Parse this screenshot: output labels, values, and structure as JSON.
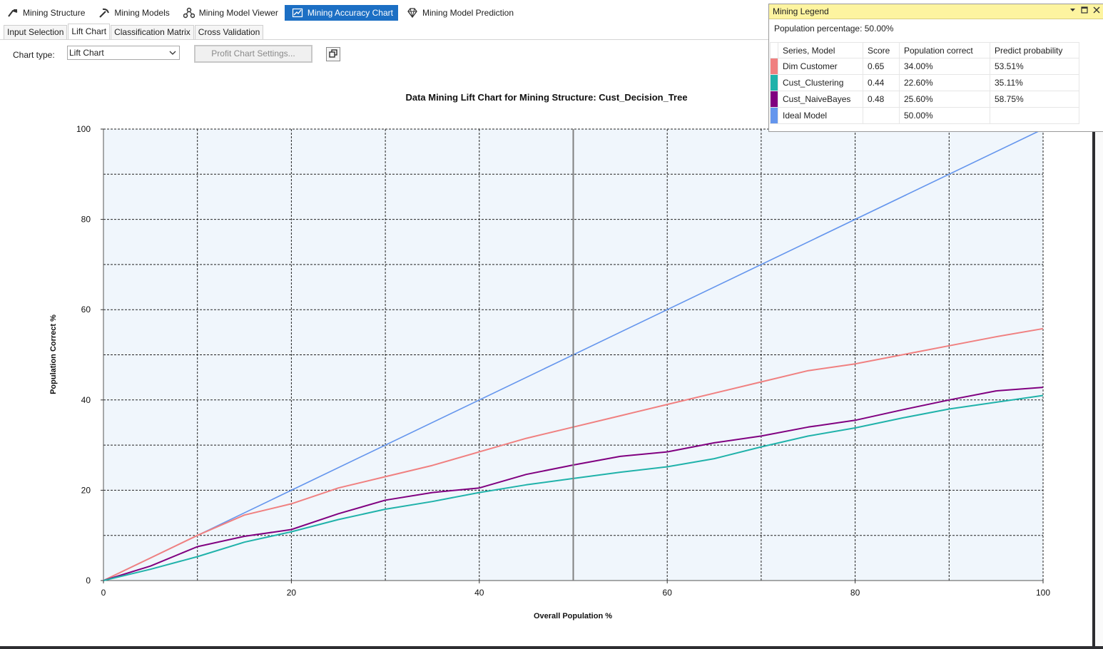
{
  "toolbar": {
    "tabs": [
      {
        "label": "Mining Structure",
        "icon": "mining-structure-icon"
      },
      {
        "label": "Mining Models",
        "icon": "mining-models-icon"
      },
      {
        "label": "Mining Model Viewer",
        "icon": "model-viewer-icon"
      },
      {
        "label": "Mining Accuracy Chart",
        "icon": "accuracy-chart-icon",
        "active": true
      },
      {
        "label": "Mining Model Prediction",
        "icon": "prediction-icon"
      }
    ]
  },
  "subtabs": [
    {
      "label": "Input Selection"
    },
    {
      "label": "Lift Chart",
      "active": true
    },
    {
      "label": "Classification Matrix"
    },
    {
      "label": "Cross Validation"
    }
  ],
  "controls": {
    "chart_type_label": "Chart type:",
    "chart_type_value": "Lift Chart",
    "profit_settings_label": "Profit Chart Settings..."
  },
  "legend": {
    "title": "Mining Legend",
    "population_percentage": "Population percentage: 50.00%",
    "headers": [
      "Series, Model",
      "Score",
      "Population correct",
      "Predict probability"
    ],
    "rows": [
      {
        "model": "Dim Customer",
        "score": "0.65",
        "population_correct": "34.00%",
        "predict_probability": "53.51%",
        "color": "#f08080"
      },
      {
        "model": "Cust_Clustering",
        "score": "0.44",
        "population_correct": "22.60%",
        "predict_probability": "35.11%",
        "color": "#20b2aa"
      },
      {
        "model": "Cust_NaiveBayes",
        "score": "0.48",
        "population_correct": "25.60%",
        "predict_probability": "58.75%",
        "color": "#800080"
      },
      {
        "model": "Ideal Model",
        "score": "",
        "population_correct": "50.00%",
        "predict_probability": "",
        "color": "#6495ed"
      }
    ]
  },
  "chart_data": {
    "type": "line",
    "title": "Data Mining Lift Chart for Mining Structure: Cust_Decision_Tree",
    "xlabel": "Overall Population %",
    "ylabel": "Population Correct %",
    "xlim": [
      0,
      100
    ],
    "ylim": [
      0,
      100
    ],
    "x_ticks": [
      0,
      20,
      40,
      60,
      80,
      100
    ],
    "y_ticks": [
      0,
      20,
      40,
      60,
      80,
      100
    ],
    "grid": true,
    "marker_x": 50,
    "series": [
      {
        "name": "Dim Customer",
        "color": "#f08080",
        "x": [
          0,
          5,
          10,
          15,
          20,
          25,
          30,
          35,
          40,
          45,
          50,
          55,
          60,
          65,
          70,
          75,
          80,
          85,
          90,
          95,
          100
        ],
        "y": [
          0,
          5,
          10,
          14.5,
          17,
          20.5,
          23,
          25.5,
          28.5,
          31.5,
          34,
          36.5,
          39,
          41.5,
          44,
          46.5,
          48,
          50,
          52,
          54,
          55.8
        ]
      },
      {
        "name": "Cust_Clustering",
        "color": "#20b2aa",
        "x": [
          0,
          5,
          10,
          15,
          20,
          25,
          30,
          35,
          40,
          45,
          50,
          55,
          60,
          65,
          70,
          75,
          80,
          85,
          90,
          95,
          100
        ],
        "y": [
          0,
          2.5,
          5.3,
          8.5,
          10.8,
          13.5,
          15.8,
          17.5,
          19.5,
          21.2,
          22.6,
          24,
          25.2,
          27,
          29.6,
          32,
          33.8,
          36,
          38,
          39.5,
          41
        ]
      },
      {
        "name": "Cust_NaiveBayes",
        "color": "#800080",
        "x": [
          0,
          5,
          10,
          15,
          20,
          25,
          30,
          35,
          40,
          45,
          50,
          55,
          60,
          65,
          70,
          75,
          80,
          85,
          90,
          95,
          100
        ],
        "y": [
          0,
          3.2,
          7.5,
          9.8,
          11.3,
          14.8,
          17.8,
          19.5,
          20.5,
          23.5,
          25.6,
          27.5,
          28.5,
          30.5,
          32,
          34,
          35.5,
          37.8,
          40,
          42,
          42.8
        ]
      },
      {
        "name": "Ideal Model",
        "color": "#6495ed",
        "x": [
          0,
          100
        ],
        "y": [
          0,
          100
        ]
      }
    ]
  }
}
